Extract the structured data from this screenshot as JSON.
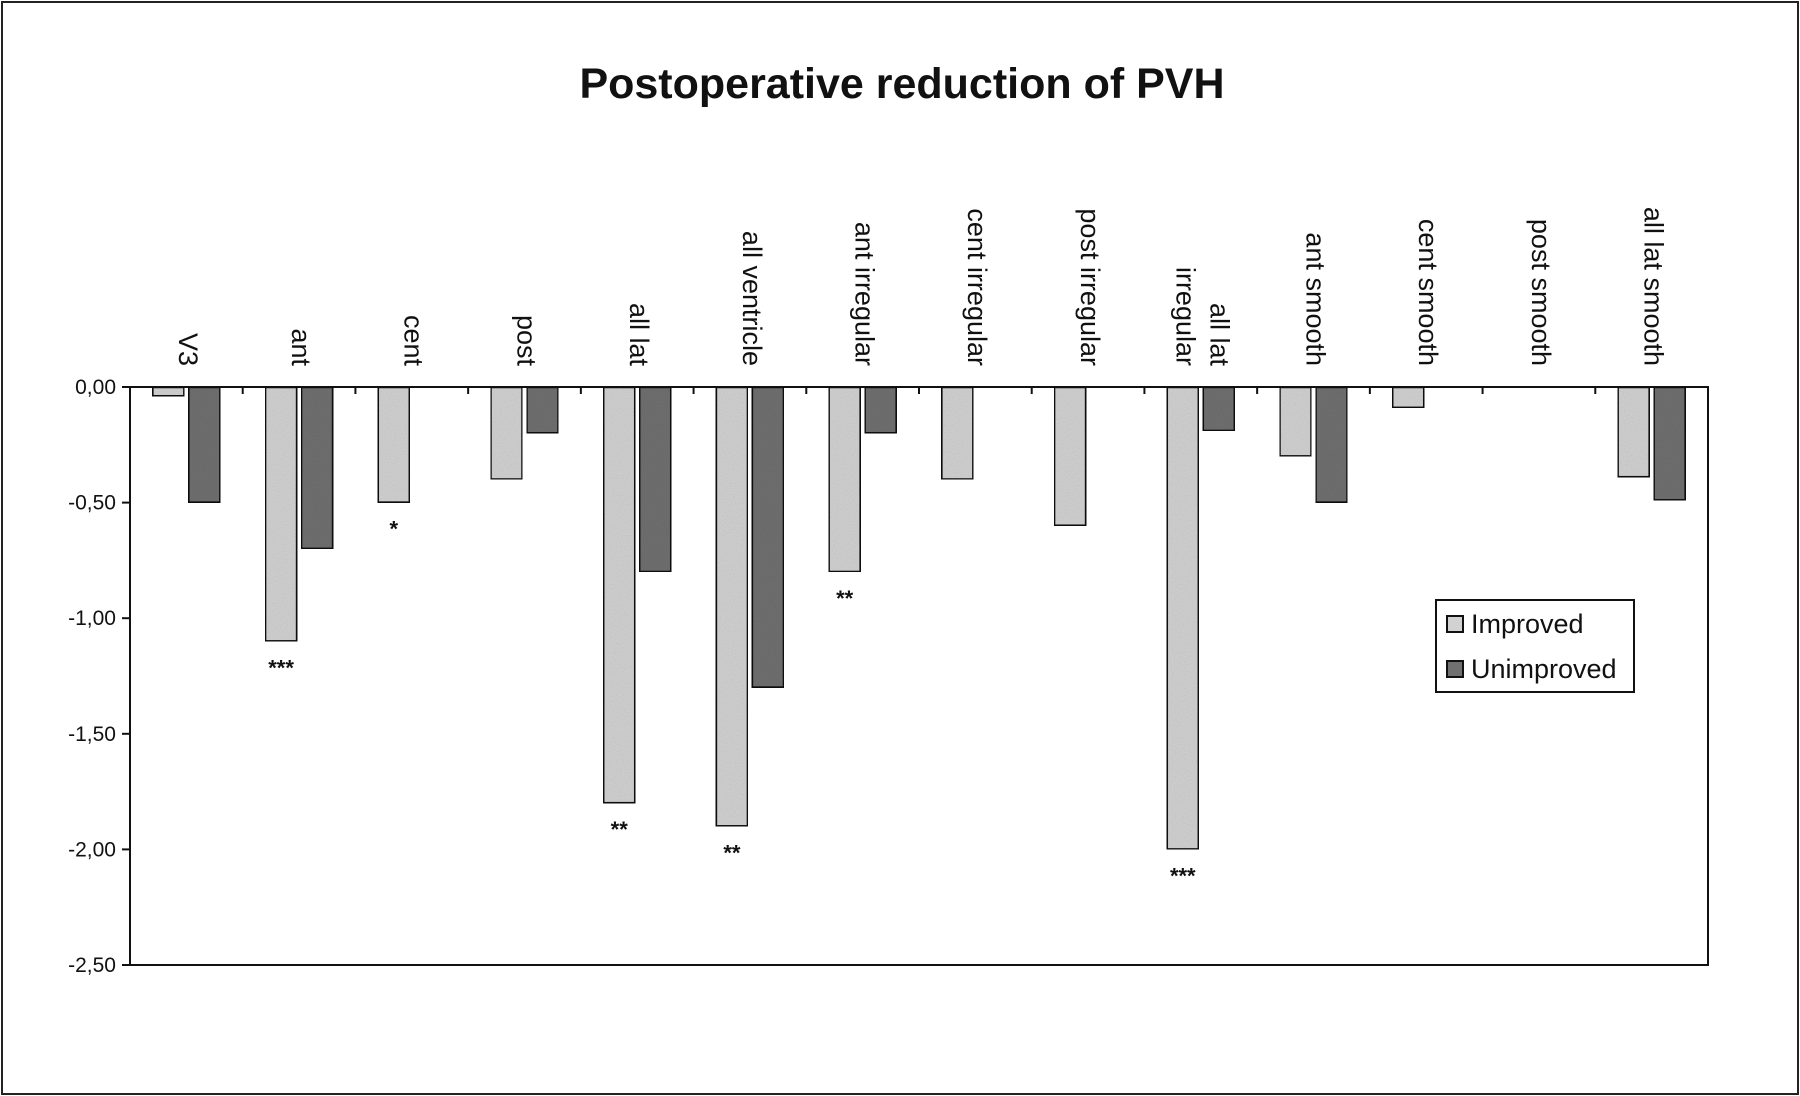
{
  "colors": {
    "improved": "#d2d2d2",
    "unimproved": "#707070",
    "border": "#111111"
  },
  "chart_data": {
    "type": "bar",
    "title": "Postoperative reduction of PVH",
    "categories": [
      [
        "V3"
      ],
      [
        "ant"
      ],
      [
        "cent"
      ],
      [
        "post"
      ],
      [
        "all lat"
      ],
      [
        "all ventricle"
      ],
      [
        "ant irregular"
      ],
      [
        "cent irregular"
      ],
      [
        "post irregular"
      ],
      [
        "all lat",
        "irregular"
      ],
      [
        "ant smooth"
      ],
      [
        "cent smooth"
      ],
      [
        "post smooth"
      ],
      [
        "all lat smooth"
      ]
    ],
    "series": [
      {
        "name": "Improved",
        "values": [
          -0.04,
          -1.1,
          -0.5,
          -0.4,
          -1.8,
          -1.9,
          -0.8,
          -0.4,
          -0.6,
          -2.0,
          -0.3,
          -0.09,
          0,
          -0.39
        ]
      },
      {
        "name": "Unimproved",
        "values": [
          -0.5,
          -0.7,
          null,
          -0.2,
          -0.8,
          -1.3,
          -0.2,
          null,
          null,
          -0.19,
          -0.5,
          null,
          null,
          -0.49
        ]
      }
    ],
    "significance": [
      "",
      "***",
      "*",
      "",
      "**",
      "**",
      "**",
      "",
      "",
      "***",
      "",
      "",
      "",
      ""
    ],
    "ylim": [
      -2.5,
      0
    ],
    "yticks": [
      "0,00",
      "-0,50",
      "-1,00",
      "-1,50",
      "-2,00",
      "-2,50"
    ],
    "ytick_values": [
      0,
      -0.5,
      -1.0,
      -1.5,
      -2.0,
      -2.5
    ],
    "legend_position": "right"
  }
}
